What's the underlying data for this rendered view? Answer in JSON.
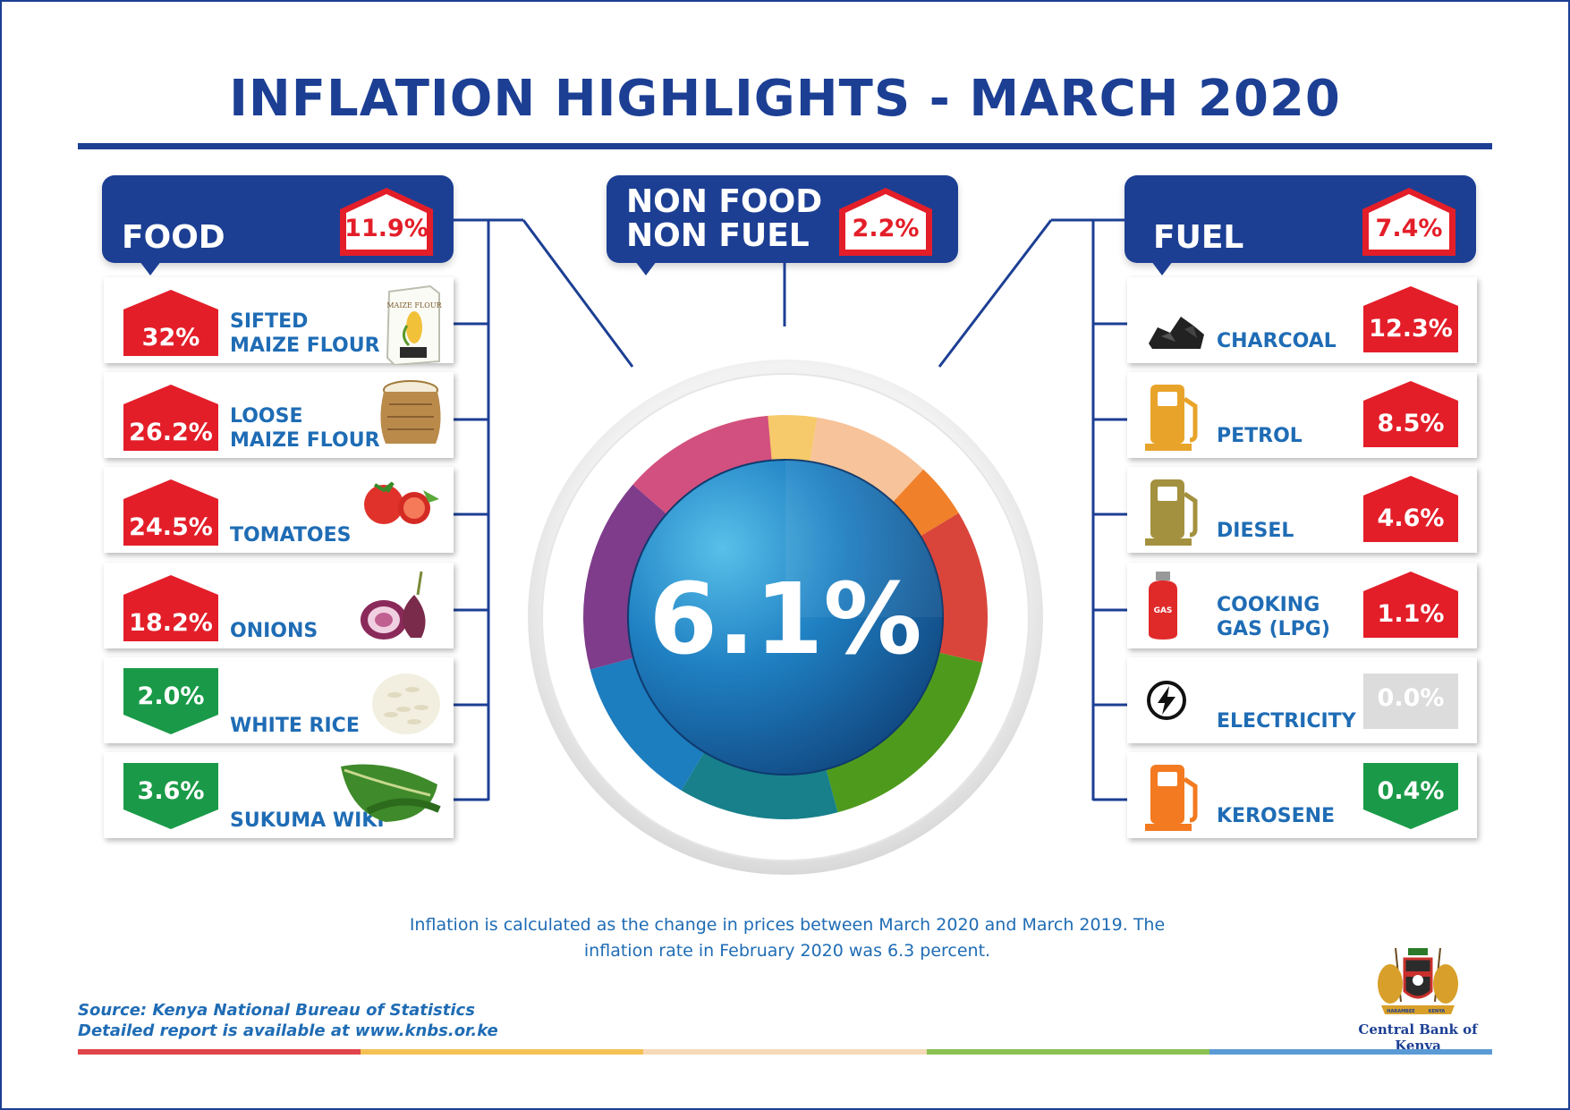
{
  "title": "INFLATION HIGHLIGHTS - MARCH 2020",
  "colors": {
    "brand_blue": "#1c3f94",
    "item_blue": "#1f6cb5",
    "increase_red": "#e31e29",
    "decrease_green": "#1a9a48",
    "neutral_grey": "#dcdcdc"
  },
  "overall": {
    "value": "6.1%"
  },
  "food": {
    "label": "FOOD",
    "value": "11.9%",
    "items": [
      {
        "label_line1": "SIFTED",
        "label_line2": "MAIZE FLOUR",
        "value": "32%",
        "direction": "up",
        "icon": "flour-bag-icon",
        "icon_text": "MAIZE FLOUR"
      },
      {
        "label_line1": "LOOSE",
        "label_line2": "MAIZE FLOUR",
        "value": "26.2%",
        "direction": "up",
        "icon": "sack-icon"
      },
      {
        "label_line1": "",
        "label_line2": "TOMATOES",
        "value": "24.5%",
        "direction": "up",
        "icon": "tomato-icon"
      },
      {
        "label_line1": "",
        "label_line2": "ONIONS",
        "value": "18.2%",
        "direction": "up",
        "icon": "onion-icon"
      },
      {
        "label_line1": "",
        "label_line2": "WHITE RICE",
        "value": "2.0%",
        "direction": "down",
        "icon": "rice-icon"
      },
      {
        "label_line1": "",
        "label_line2": "SUKUMA WIKI",
        "value": "3.6%",
        "direction": "down",
        "icon": "leafy-greens-icon"
      }
    ]
  },
  "non_food": {
    "label_line1": "NON FOOD",
    "label_line2": "NON FUEL",
    "value": "2.2%"
  },
  "fuel": {
    "label": "FUEL",
    "value": "7.4%",
    "items": [
      {
        "label_line1": "",
        "label_line2": "CHARCOAL",
        "value": "12.3%",
        "direction": "up",
        "icon": "charcoal-icon"
      },
      {
        "label_line1": "",
        "label_line2": "PETROL",
        "value": "8.5%",
        "direction": "up",
        "icon": "fuel-pump-icon",
        "icon_color": "#e8a42a"
      },
      {
        "label_line1": "",
        "label_line2": "DIESEL",
        "value": "4.6%",
        "direction": "up",
        "icon": "fuel-pump-icon",
        "icon_color": "#a4913f"
      },
      {
        "label_line1": "COOKING",
        "label_line2": "GAS (LPG)",
        "value": "1.1%",
        "direction": "up",
        "icon": "gas-cylinder-icon",
        "icon_text": "GAS"
      },
      {
        "label_line1": "",
        "label_line2": "ELECTRICITY",
        "value": "0.0%",
        "direction": "flat",
        "icon": "lightning-bolt-icon"
      },
      {
        "label_line1": "",
        "label_line2": "KEROSENE",
        "value": "0.4%",
        "direction": "down",
        "icon": "fuel-pump-icon",
        "icon_color": "#f37a20"
      }
    ]
  },
  "note": "Inflation is calculated as the change in prices between March 2020 and March 2019. The inflation rate in February 2020 was 6.3 percent.",
  "source_line1": "Source: Kenya National Bureau of Statistics",
  "source_line2": "Detailed report is available at www.knbs.or.ke",
  "logo": {
    "name": "Central Bank of Kenya",
    "emblem_text_left": "HARAMBEE",
    "emblem_text_right": "KENYA"
  },
  "ring_colors": [
    "#f6c96a",
    "#f7c39a",
    "#f0802a",
    "#d9453a",
    "#4e9a1c",
    "#17808a",
    "#1c7dbf",
    "#7e3c8b",
    "#d2507f"
  ],
  "bottom_bar_colors": [
    "#e0454a",
    "#f4c152",
    "#f6d9b7",
    "#8cc152",
    "#5b9bd5"
  ]
}
